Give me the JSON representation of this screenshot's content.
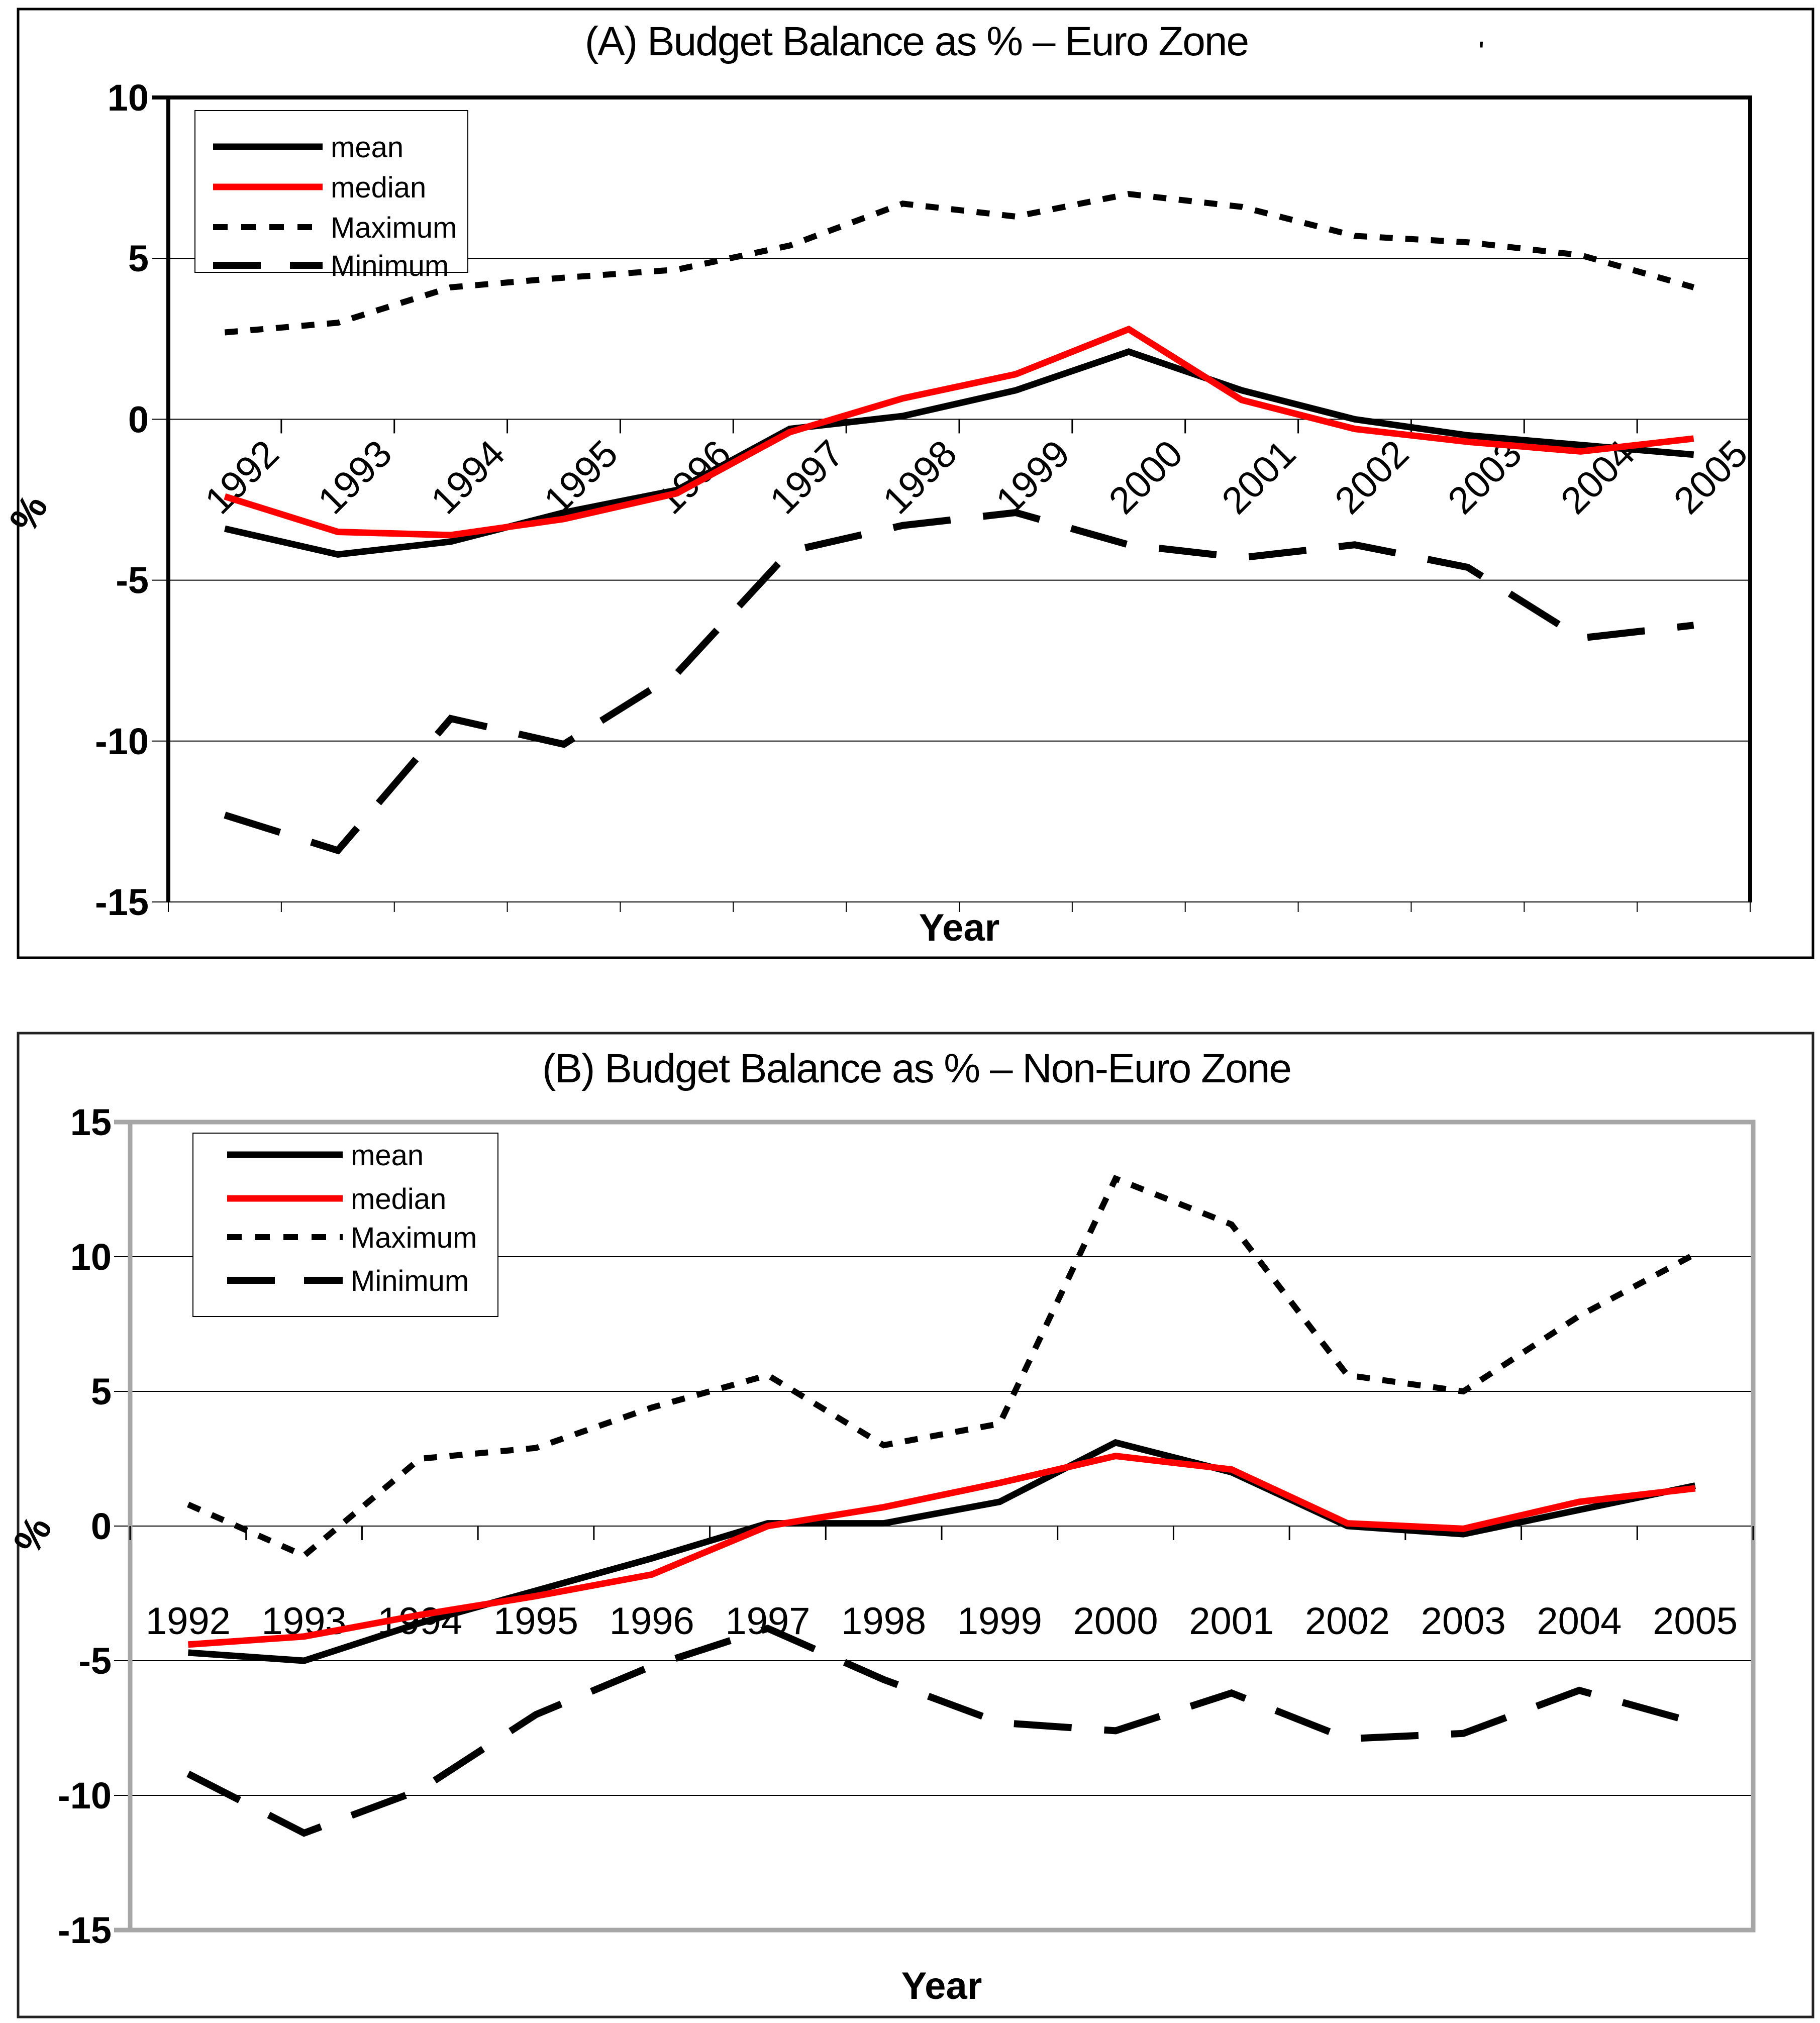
{
  "figure": {
    "panel_a": {
      "title": "(A) Budget Balance as % – Euro Zone",
      "ylabel": "%",
      "xlabel": "Year",
      "stray_mark": "'",
      "legend_items": [
        "mean",
        "median",
        "Maximum",
        "Minimum"
      ]
    },
    "panel_b": {
      "title": "(B) Budget Balance as % – Non-Euro Zone",
      "ylabel": "%",
      "xlabel": "Year",
      "legend_items": [
        "mean",
        "median",
        "Maximum",
        "Minimum"
      ]
    }
  },
  "colors": {
    "mean": "#000000",
    "median": "#fe0000",
    "grid": "#000000",
    "frame_a": "#000000",
    "frame_b": "#a6a6a6",
    "text": "#000000",
    "legend_border": "#000000"
  },
  "chart_data": [
    {
      "type": "line",
      "title": "(A) Budget Balance as % – Euro Zone",
      "xlabel": "Year",
      "ylabel": "%",
      "grid": true,
      "legend_position": "top-left",
      "ylim": [
        -15,
        10
      ],
      "yticks": [
        10,
        5,
        0,
        -5,
        -10,
        -15
      ],
      "categories": [
        "1992",
        "1993",
        "1994",
        "1995",
        "1996",
        "1997",
        "1998",
        "1999",
        "2000",
        "2001",
        "2002",
        "2003",
        "2004",
        "2005"
      ],
      "series": [
        {
          "name": "mean",
          "values": [
            -3.4,
            -4.2,
            -3.8,
            -2.9,
            -2.2,
            -0.3,
            0.1,
            0.9,
            2.1,
            0.9,
            0.0,
            -0.5,
            -0.8,
            -1.1
          ]
        },
        {
          "name": "median",
          "values": [
            -2.4,
            -3.5,
            -3.6,
            -3.1,
            -2.3,
            -0.4,
            0.65,
            1.4,
            2.8,
            0.6,
            -0.3,
            -0.7,
            -1.0,
            -0.6
          ]
        },
        {
          "name": "Maximum",
          "values": [
            2.7,
            3.0,
            4.1,
            4.4,
            4.65,
            5.4,
            6.7,
            6.3,
            7.0,
            6.6,
            5.7,
            5.5,
            5.1,
            4.1
          ]
        },
        {
          "name": "Minimum",
          "values": [
            -12.3,
            -13.4,
            -9.3,
            -10.1,
            -7.9,
            -4.1,
            -3.3,
            -2.9,
            -3.9,
            -4.3,
            -3.9,
            -4.6,
            -6.8,
            -6.4
          ]
        }
      ]
    },
    {
      "type": "line",
      "title": "(B) Budget Balance as % – Non-Euro Zone",
      "xlabel": "Year",
      "ylabel": "%",
      "grid": true,
      "legend_position": "top-left",
      "ylim": [
        -15,
        15
      ],
      "yticks": [
        15,
        10,
        5,
        0,
        -5,
        -10,
        -15
      ],
      "categories": [
        "1992",
        "1993",
        "1994",
        "1995",
        "1996",
        "1997",
        "1998",
        "1999",
        "2000",
        "2001",
        "2002",
        "2003",
        "2004",
        "2005"
      ],
      "series": [
        {
          "name": "mean",
          "values": [
            -4.7,
            -5.0,
            -3.6,
            -2.4,
            -1.2,
            0.1,
            0.1,
            0.9,
            3.1,
            2.0,
            0.0,
            -0.3,
            0.6,
            1.5
          ]
        },
        {
          "name": "median",
          "values": [
            -4.4,
            -4.1,
            -3.3,
            -2.6,
            -1.8,
            0.0,
            0.7,
            1.6,
            2.6,
            2.1,
            0.1,
            -0.1,
            0.9,
            1.4
          ]
        },
        {
          "name": "Maximum",
          "values": [
            0.8,
            -1.1,
            2.5,
            2.9,
            4.4,
            5.6,
            3.0,
            3.8,
            12.9,
            11.2,
            5.6,
            5.0,
            7.8,
            10.1
          ]
        },
        {
          "name": "Minimum",
          "values": [
            -9.2,
            -11.4,
            -9.8,
            -7.0,
            -5.2,
            -3.8,
            -5.7,
            -7.3,
            -7.6,
            -6.2,
            -7.9,
            -7.7,
            -6.1,
            -7.3
          ]
        }
      ]
    }
  ]
}
